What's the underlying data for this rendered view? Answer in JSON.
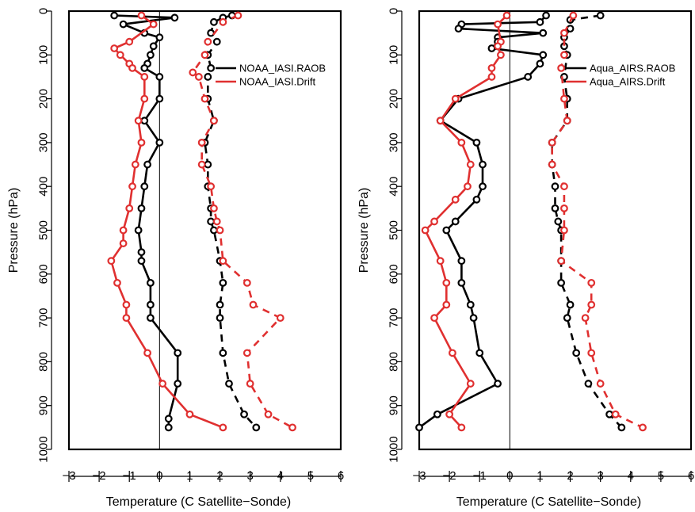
{
  "chart_data": [
    {
      "type": "line",
      "xlabel": "Temperature (C Satellite−Sonde)",
      "ylabel": "Pressure (hPa)",
      "xlim": [
        -3,
        6
      ],
      "ylim": [
        1000,
        0
      ],
      "x_ticks": [
        "−3",
        "−2",
        "−1",
        "0",
        "1",
        "2",
        "3",
        "4",
        "5",
        "6"
      ],
      "y_ticks": [
        "0",
        "100",
        "200",
        "300",
        "400",
        "500",
        "600",
        "700",
        "800",
        "900",
        "1000"
      ],
      "zero_line": 0,
      "legend": {
        "position": "right-upper",
        "entries": [
          "NOAA_IASI.RAOB",
          "NOAA_IASI.Drift"
        ]
      },
      "series": [
        {
          "name": "NOAA_IASI.RAOB",
          "color": "#000000",
          "line": "solid",
          "group": "mean",
          "points": [
            [
              -1.5,
              10
            ],
            [
              0.5,
              15
            ],
            [
              -1.2,
              30
            ],
            [
              -0.5,
              50
            ],
            [
              0.0,
              60
            ],
            [
              -0.2,
              80
            ],
            [
              -0.3,
              100
            ],
            [
              -0.4,
              120
            ],
            [
              -0.5,
              130
            ],
            [
              0.0,
              150
            ],
            [
              0.0,
              200
            ],
            [
              -0.5,
              250
            ],
            [
              0.0,
              300
            ],
            [
              -0.4,
              350
            ],
            [
              -0.5,
              400
            ],
            [
              -0.6,
              450
            ],
            [
              -0.7,
              500
            ],
            [
              -0.6,
              550
            ],
            [
              -0.6,
              570
            ],
            [
              -0.3,
              620
            ],
            [
              -0.3,
              670
            ],
            [
              -0.3,
              700
            ],
            [
              0.6,
              780
            ],
            [
              0.6,
              850
            ],
            [
              0.3,
              930
            ],
            [
              0.3,
              950
            ]
          ]
        },
        {
          "name": "NOAA_IASI.Drift",
          "color": "#e03030",
          "line": "solid",
          "group": "mean",
          "points": [
            [
              -0.6,
              10
            ],
            [
              -0.2,
              30
            ],
            [
              -1.0,
              70
            ],
            [
              -1.5,
              85
            ],
            [
              -1.3,
              100
            ],
            [
              -1.0,
              120
            ],
            [
              -0.9,
              130
            ],
            [
              -0.5,
              150
            ],
            [
              -0.5,
              200
            ],
            [
              -0.7,
              250
            ],
            [
              -0.6,
              300
            ],
            [
              -0.8,
              350
            ],
            [
              -0.9,
              400
            ],
            [
              -1.0,
              450
            ],
            [
              -1.2,
              500
            ],
            [
              -1.2,
              530
            ],
            [
              -1.6,
              570
            ],
            [
              -1.4,
              620
            ],
            [
              -1.1,
              670
            ],
            [
              -1.1,
              700
            ],
            [
              -0.4,
              780
            ],
            [
              0.1,
              850
            ],
            [
              1.0,
              920
            ],
            [
              2.1,
              950
            ]
          ]
        },
        {
          "name": "NOAA_IASI.RAOB",
          "color": "#000000",
          "line": "dashed",
          "group": "sd",
          "points": [
            [
              2.4,
              10
            ],
            [
              2.1,
              15
            ],
            [
              1.8,
              25
            ],
            [
              1.7,
              50
            ],
            [
              1.9,
              70
            ],
            [
              1.6,
              100
            ],
            [
              1.7,
              130
            ],
            [
              1.6,
              150
            ],
            [
              1.6,
              200
            ],
            [
              1.8,
              250
            ],
            [
              1.5,
              300
            ],
            [
              1.6,
              350
            ],
            [
              1.6,
              400
            ],
            [
              1.7,
              450
            ],
            [
              1.7,
              480
            ],
            [
              1.8,
              500
            ],
            [
              2.0,
              570
            ],
            [
              2.1,
              620
            ],
            [
              2.0,
              670
            ],
            [
              2.0,
              700
            ],
            [
              2.1,
              780
            ],
            [
              2.3,
              850
            ],
            [
              2.8,
              920
            ],
            [
              3.2,
              950
            ]
          ]
        },
        {
          "name": "NOAA_IASI.Drift",
          "color": "#e03030",
          "line": "dashed",
          "group": "sd",
          "points": [
            [
              2.6,
              10
            ],
            [
              2.1,
              25
            ],
            [
              1.6,
              70
            ],
            [
              1.5,
              100
            ],
            [
              1.1,
              140
            ],
            [
              1.3,
              150
            ],
            [
              1.5,
              200
            ],
            [
              1.8,
              250
            ],
            [
              1.4,
              300
            ],
            [
              1.4,
              350
            ],
            [
              1.7,
              400
            ],
            [
              1.8,
              450
            ],
            [
              1.9,
              480
            ],
            [
              2.0,
              500
            ],
            [
              2.1,
              570
            ],
            [
              2.9,
              620
            ],
            [
              3.1,
              670
            ],
            [
              4.0,
              700
            ],
            [
              2.9,
              780
            ],
            [
              3.0,
              850
            ],
            [
              3.6,
              920
            ],
            [
              4.4,
              950
            ]
          ]
        }
      ]
    },
    {
      "type": "line",
      "xlabel": "Temperature (C Satellite−Sonde)",
      "ylabel": "Pressure (hPa)",
      "xlim": [
        -3,
        6
      ],
      "ylim": [
        1000,
        0
      ],
      "x_ticks": [
        "−3",
        "−2",
        "−1",
        "0",
        "1",
        "2",
        "3",
        "4",
        "5",
        "6"
      ],
      "y_ticks": [
        "0",
        "100",
        "200",
        "300",
        "400",
        "500",
        "600",
        "700",
        "800",
        "900",
        "1000"
      ],
      "zero_line": 0,
      "legend": {
        "position": "right-upper",
        "entries": [
          "Aqua_AIRS.RAOB",
          "Aqua_AIRS.Drift"
        ]
      },
      "series": [
        {
          "name": "Aqua_AIRS.RAOB",
          "color": "#000000",
          "line": "solid",
          "group": "mean",
          "points": [
            [
              1.2,
              10
            ],
            [
              1.0,
              25
            ],
            [
              -1.6,
              30
            ],
            [
              -1.7,
              40
            ],
            [
              1.1,
              50
            ],
            [
              -0.4,
              60
            ],
            [
              -0.4,
              70
            ],
            [
              -0.6,
              85
            ],
            [
              1.1,
              100
            ],
            [
              1.0,
              120
            ],
            [
              0.6,
              150
            ],
            [
              -1.7,
              200
            ],
            [
              -2.3,
              250
            ],
            [
              -1.1,
              300
            ],
            [
              -0.9,
              350
            ],
            [
              -0.9,
              400
            ],
            [
              -1.1,
              430
            ],
            [
              -1.8,
              480
            ],
            [
              -2.1,
              500
            ],
            [
              -1.6,
              570
            ],
            [
              -1.6,
              620
            ],
            [
              -1.3,
              670
            ],
            [
              -1.2,
              700
            ],
            [
              -1.0,
              780
            ],
            [
              -0.4,
              850
            ],
            [
              -2.4,
              920
            ],
            [
              -3.0,
              950
            ]
          ]
        },
        {
          "name": "Aqua_AIRS.Drift",
          "color": "#e03030",
          "line": "solid",
          "group": "mean",
          "points": [
            [
              -0.1,
              10
            ],
            [
              -0.4,
              30
            ],
            [
              -0.3,
              70
            ],
            [
              -0.4,
              80
            ],
            [
              -0.3,
              100
            ],
            [
              -0.6,
              130
            ],
            [
              -0.6,
              150
            ],
            [
              -1.8,
              200
            ],
            [
              -2.3,
              250
            ],
            [
              -1.6,
              300
            ],
            [
              -1.3,
              350
            ],
            [
              -1.4,
              400
            ],
            [
              -1.8,
              430
            ],
            [
              -2.5,
              480
            ],
            [
              -2.8,
              500
            ],
            [
              -2.3,
              570
            ],
            [
              -2.1,
              620
            ],
            [
              -2.1,
              670
            ],
            [
              -2.5,
              700
            ],
            [
              -1.9,
              780
            ],
            [
              -1.3,
              850
            ],
            [
              -2.0,
              920
            ],
            [
              -1.6,
              950
            ]
          ]
        },
        {
          "name": "Aqua_AIRS.RAOB",
          "color": "#000000",
          "line": "dashed",
          "group": "sd",
          "points": [
            [
              3.0,
              10
            ],
            [
              2.0,
              20
            ],
            [
              2.0,
              40
            ],
            [
              1.8,
              60
            ],
            [
              1.8,
              80
            ],
            [
              1.9,
              100
            ],
            [
              1.8,
              150
            ],
            [
              1.9,
              200
            ],
            [
              1.9,
              250
            ],
            [
              1.4,
              300
            ],
            [
              1.4,
              350
            ],
            [
              1.5,
              400
            ],
            [
              1.5,
              450
            ],
            [
              1.6,
              480
            ],
            [
              1.7,
              500
            ],
            [
              1.7,
              570
            ],
            [
              1.7,
              620
            ],
            [
              2.0,
              670
            ],
            [
              1.9,
              700
            ],
            [
              2.2,
              780
            ],
            [
              2.6,
              850
            ],
            [
              3.3,
              920
            ],
            [
              3.7,
              950
            ]
          ]
        },
        {
          "name": "Aqua_AIRS.Drift",
          "color": "#e03030",
          "line": "dashed",
          "group": "sd",
          "points": [
            [
              2.1,
              10
            ],
            [
              1.8,
              50
            ],
            [
              1.8,
              100
            ],
            [
              1.7,
              130
            ],
            [
              1.8,
              200
            ],
            [
              1.9,
              250
            ],
            [
              1.4,
              300
            ],
            [
              1.4,
              350
            ],
            [
              1.8,
              400
            ],
            [
              1.8,
              450
            ],
            [
              1.8,
              500
            ],
            [
              1.7,
              570
            ],
            [
              2.7,
              620
            ],
            [
              2.7,
              670
            ],
            [
              2.5,
              700
            ],
            [
              2.7,
              780
            ],
            [
              3.0,
              850
            ],
            [
              3.5,
              920
            ],
            [
              4.4,
              950
            ]
          ]
        }
      ]
    }
  ]
}
